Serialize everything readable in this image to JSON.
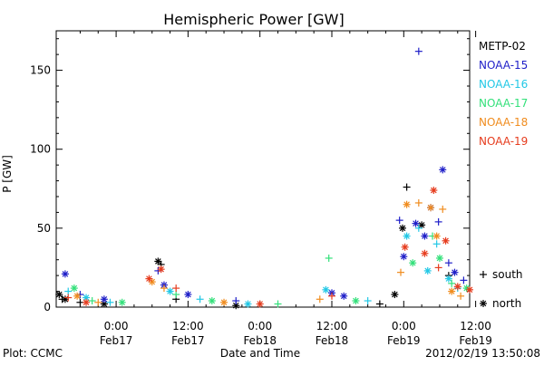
{
  "chart_data": {
    "type": "scatter",
    "title": "Hemispheric Power [GW]",
    "ylabel": "P [GW]",
    "xlabel": "Date and Time",
    "ylim": [
      0,
      175
    ],
    "xlim": [
      -10,
      59
    ],
    "x_unit": "hours since 2012-02-17 00:00",
    "x_ticks": [
      {
        "x": 0,
        "time": "0:00",
        "date": "Feb17"
      },
      {
        "x": 12,
        "time": "12:00",
        "date": "Feb17"
      },
      {
        "x": 24,
        "time": "0:00",
        "date": "Feb18"
      },
      {
        "x": 36,
        "time": "12:00",
        "date": "Feb18"
      },
      {
        "x": 48,
        "time": "0:00",
        "date": "Feb19"
      },
      {
        "x": 60,
        "time": "12:00",
        "date": "Feb19"
      }
    ],
    "y_ticks": [
      0,
      50,
      100,
      150
    ],
    "legend_position": "right",
    "marker_legend": [
      {
        "symbol": "+",
        "label": "south"
      },
      {
        "symbol": "*",
        "label": "north"
      }
    ],
    "series": [
      {
        "name": "METP-02",
        "color": "#000000",
        "points": [
          {
            "x": -9.5,
            "y": 8,
            "m": "north"
          },
          {
            "x": -9,
            "y": 5,
            "m": "south"
          },
          {
            "x": -8.5,
            "y": 5,
            "m": "north"
          },
          {
            "x": -6,
            "y": 3,
            "m": "south"
          },
          {
            "x": -2,
            "y": 2,
            "m": "north"
          },
          {
            "x": 7,
            "y": 29,
            "m": "north"
          },
          {
            "x": 7.5,
            "y": 27,
            "m": "south"
          },
          {
            "x": 10,
            "y": 5,
            "m": "south"
          },
          {
            "x": 20,
            "y": 1,
            "m": "north"
          },
          {
            "x": 44,
            "y": 2,
            "m": "south"
          },
          {
            "x": 46.5,
            "y": 8,
            "m": "north"
          },
          {
            "x": 47.8,
            "y": 50,
            "m": "north"
          },
          {
            "x": 48.5,
            "y": 76,
            "m": "south"
          },
          {
            "x": 51,
            "y": 52,
            "m": "north"
          },
          {
            "x": 55.5,
            "y": 20,
            "m": "south"
          }
        ]
      },
      {
        "name": "NOAA-15",
        "color": "#1f1fc8",
        "points": [
          {
            "x": -8.5,
            "y": 21,
            "m": "north"
          },
          {
            "x": -6,
            "y": 8,
            "m": "south"
          },
          {
            "x": -2,
            "y": 5,
            "m": "north"
          },
          {
            "x": 7,
            "y": 23,
            "m": "south"
          },
          {
            "x": 8,
            "y": 14,
            "m": "north"
          },
          {
            "x": 12,
            "y": 8,
            "m": "north"
          },
          {
            "x": 20,
            "y": 4,
            "m": "south"
          },
          {
            "x": 36,
            "y": 9,
            "m": "north"
          },
          {
            "x": 38,
            "y": 7,
            "m": "north"
          },
          {
            "x": 47.3,
            "y": 55,
            "m": "south"
          },
          {
            "x": 48,
            "y": 32,
            "m": "north"
          },
          {
            "x": 50,
            "y": 53,
            "m": "north"
          },
          {
            "x": 50.5,
            "y": 162,
            "m": "south"
          },
          {
            "x": 51.5,
            "y": 45,
            "m": "north"
          },
          {
            "x": 52.5,
            "y": 63,
            "m": "north"
          },
          {
            "x": 53.8,
            "y": 54,
            "m": "south"
          },
          {
            "x": 54.5,
            "y": 87,
            "m": "north"
          },
          {
            "x": 55.5,
            "y": 28,
            "m": "south"
          },
          {
            "x": 56.5,
            "y": 22,
            "m": "north"
          },
          {
            "x": 58,
            "y": 17,
            "m": "south"
          }
        ]
      },
      {
        "name": "NOAA-16",
        "color": "#22c8e6",
        "points": [
          {
            "x": -8,
            "y": 10,
            "m": "south"
          },
          {
            "x": -5,
            "y": 6,
            "m": "north"
          },
          {
            "x": -1,
            "y": 3,
            "m": "south"
          },
          {
            "x": 9,
            "y": 10,
            "m": "north"
          },
          {
            "x": 14,
            "y": 5,
            "m": "south"
          },
          {
            "x": 22,
            "y": 2,
            "m": "north"
          },
          {
            "x": 35,
            "y": 11,
            "m": "north"
          },
          {
            "x": 42,
            "y": 4,
            "m": "south"
          },
          {
            "x": 48.5,
            "y": 45,
            "m": "north"
          },
          {
            "x": 50.5,
            "y": 50,
            "m": "south"
          },
          {
            "x": 52,
            "y": 23,
            "m": "north"
          },
          {
            "x": 53.5,
            "y": 40,
            "m": "south"
          },
          {
            "x": 55.5,
            "y": 18,
            "m": "north"
          },
          {
            "x": 57,
            "y": 12,
            "m": "south"
          }
        ]
      },
      {
        "name": "NOAA-17",
        "color": "#33e07a",
        "points": [
          {
            "x": -7,
            "y": 12,
            "m": "north"
          },
          {
            "x": -4,
            "y": 4,
            "m": "south"
          },
          {
            "x": 1,
            "y": 3,
            "m": "north"
          },
          {
            "x": 10,
            "y": 8,
            "m": "south"
          },
          {
            "x": 16,
            "y": 4,
            "m": "north"
          },
          {
            "x": 27,
            "y": 2,
            "m": "south"
          },
          {
            "x": 35.5,
            "y": 31,
            "m": "south"
          },
          {
            "x": 40,
            "y": 4,
            "m": "north"
          },
          {
            "x": 49.5,
            "y": 28,
            "m": "north"
          },
          {
            "x": 52.8,
            "y": 45,
            "m": "south"
          },
          {
            "x": 54,
            "y": 31,
            "m": "north"
          },
          {
            "x": 56,
            "y": 15,
            "m": "south"
          },
          {
            "x": 58.5,
            "y": 12,
            "m": "north"
          }
        ]
      },
      {
        "name": "NOAA-18",
        "color": "#f08c1e",
        "points": [
          {
            "x": -6.5,
            "y": 7,
            "m": "north"
          },
          {
            "x": -3,
            "y": 3,
            "m": "south"
          },
          {
            "x": 6,
            "y": 16,
            "m": "north"
          },
          {
            "x": 8,
            "y": 12,
            "m": "south"
          },
          {
            "x": 18,
            "y": 3,
            "m": "north"
          },
          {
            "x": 34,
            "y": 5,
            "m": "south"
          },
          {
            "x": 47.5,
            "y": 22,
            "m": "south"
          },
          {
            "x": 48.5,
            "y": 65,
            "m": "north"
          },
          {
            "x": 50.5,
            "y": 66,
            "m": "south"
          },
          {
            "x": 52.5,
            "y": 63,
            "m": "north"
          },
          {
            "x": 53.5,
            "y": 45,
            "m": "north"
          },
          {
            "x": 54.5,
            "y": 62,
            "m": "south"
          },
          {
            "x": 56,
            "y": 10,
            "m": "north"
          },
          {
            "x": 57.5,
            "y": 7,
            "m": "south"
          }
        ]
      },
      {
        "name": "NOAA-19",
        "color": "#e63c1e",
        "points": [
          {
            "x": -8,
            "y": 6,
            "m": "south"
          },
          {
            "x": -5,
            "y": 3,
            "m": "north"
          },
          {
            "x": 5.5,
            "y": 18,
            "m": "north"
          },
          {
            "x": 7.5,
            "y": 24,
            "m": "north"
          },
          {
            "x": 10,
            "y": 12,
            "m": "south"
          },
          {
            "x": 24,
            "y": 2,
            "m": "north"
          },
          {
            "x": 36,
            "y": 7,
            "m": "south"
          },
          {
            "x": 48.2,
            "y": 38,
            "m": "north"
          },
          {
            "x": 51.5,
            "y": 34,
            "m": "north"
          },
          {
            "x": 53,
            "y": 74,
            "m": "north"
          },
          {
            "x": 53.8,
            "y": 25,
            "m": "south"
          },
          {
            "x": 55,
            "y": 42,
            "m": "north"
          },
          {
            "x": 57,
            "y": 13,
            "m": "north"
          },
          {
            "x": 59,
            "y": 11,
            "m": "north"
          }
        ]
      }
    ]
  },
  "footer": {
    "left": "Plot: CCMC",
    "center": "Date and Time",
    "right": "2012/02/19 13:50:08"
  }
}
